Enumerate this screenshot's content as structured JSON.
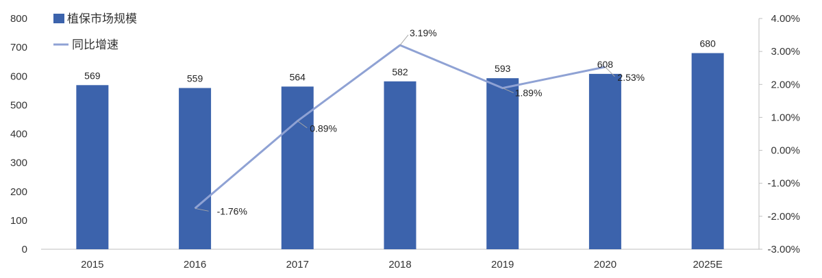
{
  "chart_data": {
    "type": "bar",
    "categories": [
      "2015",
      "2016",
      "2017",
      "2018",
      "2019",
      "2020",
      "2025E"
    ],
    "series": [
      {
        "name": "植保市场规模",
        "type": "bar",
        "axis": "left",
        "values": [
          569,
          559,
          564,
          582,
          593,
          608,
          680
        ],
        "labels": [
          "569",
          "559",
          "564",
          "582",
          "593",
          "608",
          "680"
        ]
      },
      {
        "name": "同比增速",
        "type": "line",
        "axis": "right",
        "values": [
          null,
          -1.76,
          0.89,
          3.19,
          1.89,
          2.53,
          null
        ],
        "labels": [
          "",
          "-1.76%",
          "0.89%",
          "3.19%",
          "1.89%",
          "2.53%",
          ""
        ]
      }
    ],
    "y_left": {
      "lim": [
        0,
        800
      ],
      "ticks": [
        0,
        100,
        200,
        300,
        400,
        500,
        600,
        700,
        800
      ],
      "tick_labels": [
        "0",
        "100",
        "200",
        "300",
        "400",
        "500",
        "600",
        "700",
        "800"
      ]
    },
    "y_right": {
      "lim": [
        -3,
        4
      ],
      "ticks": [
        -3,
        -2,
        -1,
        0,
        1,
        2,
        3,
        4
      ],
      "tick_labels": [
        "-3.00%",
        "-2.00%",
        "-1.00%",
        "0.00%",
        "1.00%",
        "2.00%",
        "3.00%",
        "4.00%"
      ]
    },
    "legend": {
      "position": "top-left",
      "items": [
        "植保市场规模",
        "同比增速"
      ]
    },
    "grid": false,
    "colors": {
      "bar": "#3c63ac",
      "line": "#8fa2d4",
      "axis": "#bfbfbf"
    }
  }
}
